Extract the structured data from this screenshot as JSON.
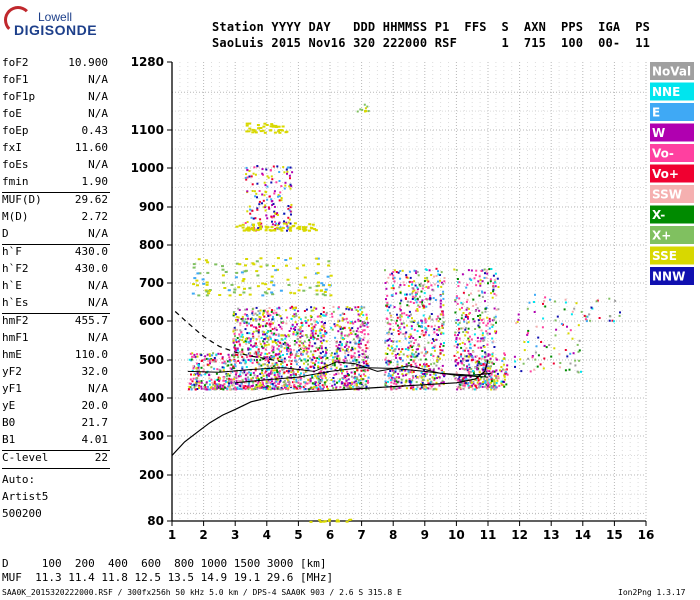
{
  "logo": {
    "line1": "Lowell",
    "line2": "DIGISONDE"
  },
  "header": {
    "labels": "Station YYYY DAY   DDD HHMMSS P1  FFS  S  AXN  PPS  IGA  PS",
    "values": "SaoLuis 2015 Nov16 320 222000 RSF      1  715  100  00-  11"
  },
  "params": {
    "group1": [
      {
        "label": "foF2",
        "value": "10.900"
      },
      {
        "label": "foF1",
        "value": "N/A"
      },
      {
        "label": "foF1p",
        "value": "N/A"
      },
      {
        "label": "foE",
        "value": "N/A"
      },
      {
        "label": "foEp",
        "value": "0.43"
      },
      {
        "label": "fxI",
        "value": "11.60"
      },
      {
        "label": "foEs",
        "value": "N/A"
      },
      {
        "label": "fmin",
        "value": "1.90"
      }
    ],
    "group2": [
      {
        "label": "MUF(D)",
        "value": "29.62"
      },
      {
        "label": "M(D)",
        "value": "2.72"
      },
      {
        "label": "D",
        "value": "N/A"
      }
    ],
    "group3": [
      {
        "label": "h`F",
        "value": "430.0"
      },
      {
        "label": "h`F2",
        "value": "430.0"
      },
      {
        "label": "h`E",
        "value": "N/A"
      },
      {
        "label": "h`Es",
        "value": "N/A"
      }
    ],
    "group4": [
      {
        "label": "hmF2",
        "value": "455.7"
      },
      {
        "label": "hmF1",
        "value": "N/A"
      },
      {
        "label": "hmE",
        "value": "110.0"
      },
      {
        "label": "yF2",
        "value": "32.0"
      },
      {
        "label": "yF1",
        "value": "N/A"
      },
      {
        "label": "yE",
        "value": "20.0"
      },
      {
        "label": "B0",
        "value": "21.7"
      },
      {
        "label": "B1",
        "value": "4.01"
      }
    ],
    "clevel": {
      "label": "C-level",
      "value": "22"
    },
    "auto": [
      "Auto:",
      "Artist5",
      "500200"
    ]
  },
  "legend": [
    {
      "label": "NoVal",
      "color": "#a0a0a0"
    },
    {
      "label": "NNE",
      "color": "#00e5ee"
    },
    {
      "label": "E",
      "color": "#3fa9f5"
    },
    {
      "label": "W",
      "color": "#b000b0"
    },
    {
      "label": "Vo-",
      "color": "#ff40a0"
    },
    {
      "label": "Vo+",
      "color": "#f00030"
    },
    {
      "label": "SSW",
      "color": "#f5b0b0"
    },
    {
      "label": "X-",
      "color": "#008a00"
    },
    {
      "label": "X+",
      "color": "#80c060"
    },
    {
      "label": "SSE",
      "color": "#d8d800"
    },
    {
      "label": "NNW",
      "color": "#1010b0"
    }
  ],
  "chart_data": {
    "type": "scatter",
    "xlim": [
      1,
      16
    ],
    "ylim": [
      80,
      1280
    ],
    "xticks": [
      "1",
      "2",
      "3",
      "4",
      "5",
      "6",
      "7",
      "8",
      "9",
      "10",
      "11",
      "12",
      "13",
      "14",
      "15",
      "16"
    ],
    "yticks": [
      "80",
      "200",
      "300",
      "400",
      "500",
      "600",
      "700",
      "800",
      "900",
      "1000",
      "1100",
      "1280"
    ],
    "grid": true,
    "profile_solid": [
      [
        1.0,
        250
      ],
      [
        1.4,
        285
      ],
      [
        1.8,
        310
      ],
      [
        2.2,
        335
      ],
      [
        2.6,
        355
      ],
      [
        3.0,
        370
      ],
      [
        3.5,
        390
      ],
      [
        4.0,
        400
      ],
      [
        4.5,
        410
      ],
      [
        5.0,
        415
      ],
      [
        6.0,
        420
      ],
      [
        7.0,
        425
      ],
      [
        8.0,
        430
      ],
      [
        9.0,
        435
      ],
      [
        10.0,
        440
      ],
      [
        10.6,
        450
      ],
      [
        10.9,
        470
      ],
      [
        11.0,
        500
      ]
    ],
    "profile_dashed": [
      [
        1.1,
        625
      ],
      [
        1.5,
        595
      ],
      [
        2.0,
        560
      ],
      [
        2.5,
        535
      ],
      [
        3.0,
        520
      ],
      [
        3.5,
        510
      ],
      [
        4.0,
        503
      ],
      [
        4.5,
        495
      ]
    ],
    "trace_lines": [
      [
        [
          1.5,
          470
        ],
        [
          2.5,
          468
        ],
        [
          3.5,
          475
        ],
        [
          4.5,
          480
        ],
        [
          5.5,
          470
        ],
        [
          6.2,
          495
        ],
        [
          6.8,
          490
        ],
        [
          7.5,
          470
        ],
        [
          8.5,
          485
        ],
        [
          9.5,
          465
        ],
        [
          10.5,
          460
        ],
        [
          11.1,
          465
        ]
      ],
      [
        [
          3.0,
          440
        ],
        [
          4.0,
          448
        ],
        [
          5.0,
          455
        ],
        [
          6.0,
          470
        ],
        [
          7.0,
          480
        ],
        [
          8.0,
          478
        ],
        [
          9.0,
          470
        ],
        [
          10.0,
          460
        ],
        [
          11.0,
          455
        ]
      ]
    ]
  },
  "footer": {
    "d_row": "D     100  200  400  600  800 1000 1500 3000 [km]",
    "muf_row": "MUF  11.3 11.4 11.8 12.5 13.5 14.9 19.1 29.6 [MHz]",
    "file_info": "SAA0K_2015320222000.RSF / 300fx256h 50 kHz 5.0 km / DPS-4 SAA0K 903 / 2.6 S 315.8 E",
    "version": "Ion2Png 1.3.17"
  }
}
